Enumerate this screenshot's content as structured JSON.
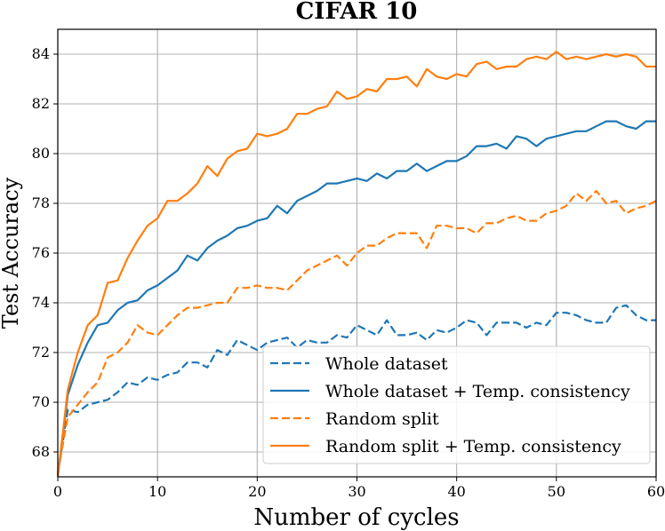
{
  "chart_data": {
    "type": "line",
    "title": "CIFAR 10",
    "xlabel": "Number of cycles",
    "ylabel": "Test Accuracy",
    "xlim": [
      0,
      60
    ],
    "ylim": [
      67,
      85
    ],
    "xticks": [
      0,
      10,
      20,
      30,
      40,
      50,
      60
    ],
    "yticks": [
      68,
      70,
      72,
      74,
      76,
      78,
      80,
      82,
      84
    ],
    "grid": true,
    "legend_position": "bottom-right",
    "series": [
      {
        "name": "Whole dataset",
        "color": "#1f77b4",
        "linestyle": "dashed",
        "values": [
          67.1,
          69.7,
          69.6,
          69.9,
          70.0,
          70.1,
          70.4,
          70.8,
          70.7,
          71.0,
          70.9,
          71.1,
          71.2,
          71.6,
          71.6,
          71.4,
          72.1,
          71.9,
          72.5,
          72.3,
          72.1,
          72.4,
          72.5,
          72.6,
          72.2,
          72.5,
          72.4,
          72.4,
          72.7,
          72.6,
          73.1,
          72.9,
          72.7,
          73.3,
          72.7,
          72.7,
          72.8,
          72.5,
          72.9,
          72.8,
          73.0,
          73.3,
          73.2,
          72.7,
          73.2,
          73.2,
          73.2,
          73.0,
          73.2,
          73.1,
          73.6,
          73.6,
          73.5,
          73.3,
          73.2,
          73.2,
          73.8,
          73.9,
          73.5,
          73.3,
          73.3
        ]
      },
      {
        "name": "Whole dataset + Temp. consistency",
        "color": "#1f77b4",
        "linestyle": "solid",
        "values": [
          67.0,
          70.3,
          71.5,
          72.4,
          73.1,
          73.2,
          73.7,
          74.0,
          74.1,
          74.5,
          74.7,
          75.0,
          75.3,
          75.9,
          75.7,
          76.2,
          76.5,
          76.7,
          77.0,
          77.1,
          77.3,
          77.4,
          77.9,
          77.6,
          78.1,
          78.3,
          78.5,
          78.8,
          78.8,
          78.9,
          79.0,
          78.9,
          79.2,
          79.0,
          79.3,
          79.3,
          79.6,
          79.3,
          79.5,
          79.7,
          79.7,
          79.9,
          80.3,
          80.3,
          80.4,
          80.2,
          80.7,
          80.6,
          80.3,
          80.6,
          80.7,
          80.8,
          80.9,
          80.9,
          81.1,
          81.3,
          81.3,
          81.1,
          81.0,
          81.3,
          81.3
        ]
      },
      {
        "name": "Random split",
        "color": "#ff7f0e",
        "linestyle": "dashed",
        "values": [
          67.2,
          69.4,
          69.9,
          70.4,
          70.8,
          71.8,
          72.0,
          72.4,
          73.1,
          72.8,
          72.7,
          73.1,
          73.5,
          73.8,
          73.8,
          73.9,
          74.0,
          74.0,
          74.6,
          74.6,
          74.7,
          74.6,
          74.6,
          74.5,
          74.9,
          75.3,
          75.5,
          75.7,
          75.9,
          75.5,
          76.0,
          76.3,
          76.3,
          76.6,
          76.8,
          76.8,
          76.8,
          76.2,
          77.1,
          77.1,
          77.0,
          77.0,
          76.8,
          77.2,
          77.2,
          77.4,
          77.5,
          77.3,
          77.3,
          77.6,
          77.7,
          77.9,
          78.4,
          78.1,
          78.5,
          78.0,
          78.1,
          77.6,
          77.8,
          77.9,
          78.1
        ]
      },
      {
        "name": "Random split + Temp. consistency",
        "color": "#ff7f0e",
        "linestyle": "solid",
        "values": [
          67.0,
          70.5,
          72.0,
          73.1,
          73.5,
          74.8,
          74.9,
          75.8,
          76.5,
          77.1,
          77.4,
          78.1,
          78.1,
          78.4,
          78.8,
          79.5,
          79.1,
          79.8,
          80.1,
          80.2,
          80.8,
          80.7,
          80.8,
          81.0,
          81.6,
          81.6,
          81.8,
          81.9,
          82.5,
          82.2,
          82.3,
          82.6,
          82.5,
          83.0,
          83.0,
          83.1,
          82.7,
          83.4,
          83.1,
          83.0,
          83.2,
          83.1,
          83.6,
          83.7,
          83.4,
          83.5,
          83.5,
          83.8,
          83.9,
          83.8,
          84.1,
          83.8,
          83.9,
          83.8,
          83.9,
          84.0,
          83.9,
          84.0,
          83.9,
          83.5,
          83.5
        ]
      }
    ]
  }
}
